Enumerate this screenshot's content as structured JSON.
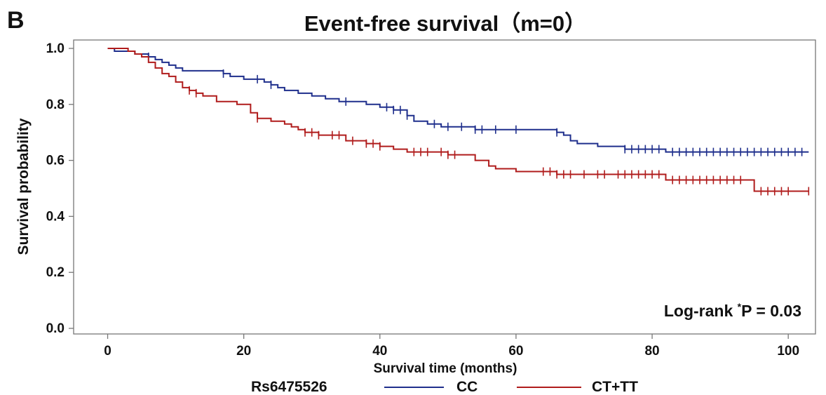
{
  "panel_label": "B",
  "chart_data": {
    "type": "line",
    "title": "Event-free survival（m=0）",
    "xlabel": "Survival time (months)",
    "ylabel": "Survival probability",
    "xlim": [
      -5,
      104
    ],
    "ylim": [
      -0.02,
      1.03
    ],
    "x_ticks": [
      0,
      20,
      40,
      60,
      80,
      100
    ],
    "y_ticks": [
      0.0,
      0.2,
      0.4,
      0.6,
      0.8,
      1.0
    ],
    "x_tick_labels": [
      "0",
      "20",
      "40",
      "60",
      "80",
      "100"
    ],
    "y_tick_labels": [
      "0.0",
      "0.2",
      "0.4",
      "0.6",
      "0.8",
      "1.0"
    ],
    "grid": false,
    "legend": {
      "title": "Rs6475526",
      "placement": "bottom"
    },
    "annotation": {
      "prefix": "Log-rank",
      "sup": "*",
      "suffix": "P = 0.03"
    },
    "series": [
      {
        "name": "CC",
        "color": "#1f2f8c",
        "x": [
          0,
          1,
          2,
          3,
          4,
          5,
          6,
          7,
          8,
          9,
          10,
          11,
          12,
          16,
          17,
          18,
          20,
          22,
          23,
          24,
          25,
          26,
          28,
          30,
          32,
          34,
          38,
          40,
          42,
          44,
          45,
          47,
          49,
          50,
          54,
          55,
          57,
          59,
          66,
          67,
          68,
          69,
          71,
          72,
          74,
          76,
          78,
          80,
          82,
          90,
          103
        ],
        "y": [
          1.0,
          0.99,
          0.99,
          0.99,
          0.98,
          0.98,
          0.97,
          0.96,
          0.95,
          0.94,
          0.93,
          0.92,
          0.92,
          0.92,
          0.91,
          0.9,
          0.89,
          0.89,
          0.88,
          0.87,
          0.86,
          0.85,
          0.84,
          0.83,
          0.82,
          0.81,
          0.8,
          0.79,
          0.78,
          0.76,
          0.74,
          0.73,
          0.72,
          0.72,
          0.71,
          0.71,
          0.71,
          0.71,
          0.7,
          0.69,
          0.67,
          0.66,
          0.66,
          0.65,
          0.65,
          0.64,
          0.64,
          0.64,
          0.63,
          0.63,
          0.63
        ],
        "censor_x": [
          6,
          17,
          22,
          24,
          35,
          41,
          42,
          43,
          44,
          48,
          50,
          52,
          54,
          55,
          57,
          60,
          66,
          76,
          77,
          78,
          79,
          80,
          81,
          83,
          84,
          85,
          86,
          87,
          88,
          89,
          90,
          91,
          92,
          93,
          94,
          95,
          96,
          97,
          98,
          99,
          100,
          101,
          102
        ]
      },
      {
        "name": "CT+TT",
        "color": "#b01c1c",
        "x": [
          0,
          2,
          3,
          4,
          5,
          6,
          7,
          8,
          9,
          10,
          11,
          12,
          13,
          14,
          16,
          19,
          21,
          22,
          24,
          26,
          27,
          28,
          29,
          31,
          33,
          35,
          38,
          40,
          42,
          44,
          47,
          50,
          52,
          54,
          56,
          57,
          58,
          60,
          66,
          67,
          70,
          74,
          78,
          82,
          88,
          94,
          95,
          103
        ],
        "y": [
          1.0,
          1.0,
          0.99,
          0.98,
          0.97,
          0.95,
          0.93,
          0.91,
          0.9,
          0.88,
          0.86,
          0.85,
          0.84,
          0.83,
          0.81,
          0.8,
          0.77,
          0.75,
          0.74,
          0.73,
          0.72,
          0.71,
          0.7,
          0.69,
          0.69,
          0.67,
          0.66,
          0.65,
          0.64,
          0.63,
          0.63,
          0.62,
          0.62,
          0.6,
          0.58,
          0.57,
          0.57,
          0.56,
          0.55,
          0.55,
          0.55,
          0.55,
          0.55,
          0.53,
          0.53,
          0.53,
          0.49,
          0.49
        ],
        "censor_x": [
          12,
          13,
          22,
          29,
          30,
          31,
          33,
          34,
          36,
          38,
          39,
          40,
          45,
          46,
          47,
          49,
          50,
          51,
          64,
          65,
          66,
          67,
          68,
          70,
          72,
          73,
          75,
          76,
          77,
          78,
          79,
          80,
          81,
          83,
          84,
          85,
          86,
          87,
          88,
          89,
          90,
          91,
          92,
          93,
          96,
          97,
          98,
          99,
          100,
          103
        ]
      }
    ]
  }
}
